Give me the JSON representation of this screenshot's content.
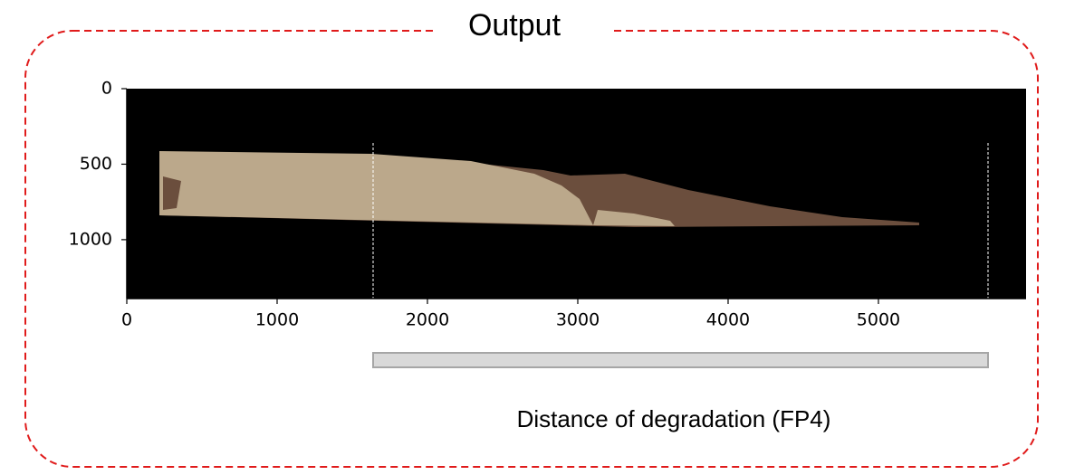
{
  "chart_data": {
    "type": "image",
    "title": "Output",
    "caption": "Distance of degradation (FP4)",
    "xlim": [
      0,
      5982
    ],
    "ylim": [
      1390,
      0
    ],
    "xticks": [
      0,
      1000,
      2000,
      3000,
      4000,
      5000
    ],
    "yticks": [
      0,
      500,
      1000
    ]
  }
}
